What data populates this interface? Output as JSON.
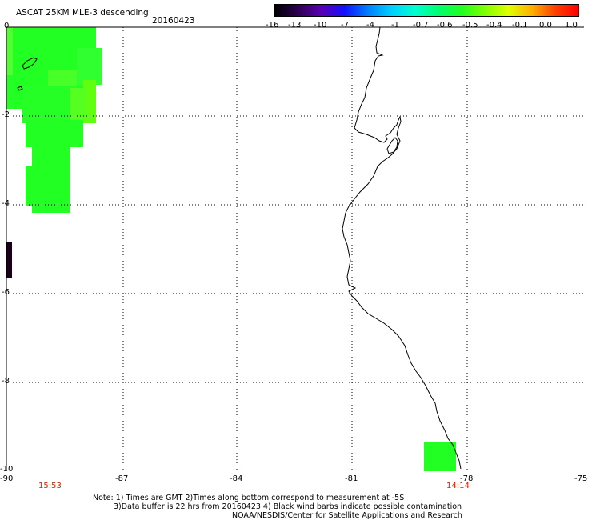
{
  "header": {
    "title": "ASCAT 25KM MLE-3 descending",
    "date": "20160423"
  },
  "legend": {
    "labels": [
      "-16",
      "-13",
      "-10",
      "-7",
      "-4",
      "-1",
      "-0.7",
      "-0.6",
      "-0.5",
      "-0.4",
      "-0.1",
      "0.0",
      "1.0"
    ],
    "colors": [
      "#000000",
      "#2c0050",
      "#5a00b4",
      "#1010ff",
      "#0080ff",
      "#00d0ff",
      "#00ffd0",
      "#00ff70",
      "#20ff20",
      "#80ff00",
      "#e0ff00",
      "#ffb000",
      "#ff4000",
      "#ff0000"
    ]
  },
  "map": {
    "lon_range": [
      -90,
      -75
    ],
    "lat_range": [
      -10,
      0
    ],
    "lon_ticks": [
      "-90",
      "-87",
      "-84",
      "-81",
      "-78",
      "-75"
    ],
    "lat_ticks": [
      "0",
      "-2",
      "-4",
      "-6",
      "-8",
      "-10"
    ],
    "grid": true,
    "coastline_color": "#000000"
  },
  "pass_times": {
    "left": "15:53",
    "right": "14:14"
  },
  "notes": {
    "line1": "Note: 1) Times are GMT 2)Times along bottom correspond to measurement at -5S",
    "line2": "3)Data buffer is 22 hrs from 20160423 4) Black wind barbs indicate possible contamination",
    "line3": "NOAA/NESDIS/Center for Satellite Applications and Research"
  }
}
